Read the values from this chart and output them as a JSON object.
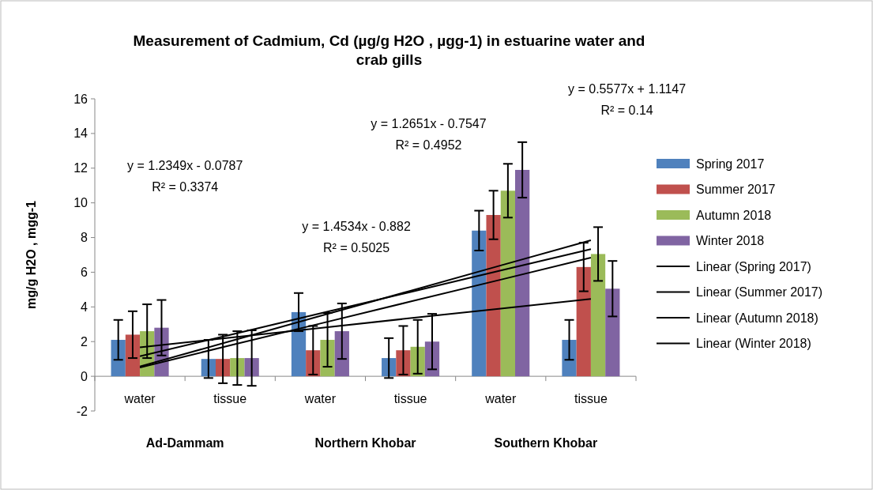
{
  "chart_data": {
    "type": "bar",
    "title": "Measurement of Cadmium, Cd (µg/g H2O , µgg-1) in estuarine water and crab gills",
    "ylabel": "mg/g H2O , mgg-1",
    "categories": [
      "water",
      "tissue",
      "water",
      "tissue",
      "water",
      "tissue"
    ],
    "series": [
      {
        "name": "Spring 2017",
        "color": "#4f81bd",
        "values": [
          2.1,
          1.0,
          3.7,
          1.05,
          8.4,
          2.1
        ],
        "errors": [
          1.15,
          1.1,
          1.1,
          1.15,
          1.15,
          1.15
        ]
      },
      {
        "name": "Summer 2017",
        "color": "#c0504d",
        "values": [
          2.4,
          1.0,
          1.5,
          1.5,
          9.3,
          6.3
        ],
        "errors": [
          1.35,
          1.4,
          1.4,
          1.4,
          1.4,
          1.4
        ]
      },
      {
        "name": "Autumn 2018",
        "color": "#9bbb59",
        "values": [
          2.6,
          1.05,
          2.1,
          1.7,
          10.7,
          7.05
        ],
        "errors": [
          1.55,
          1.55,
          1.55,
          1.55,
          1.55,
          1.55
        ]
      },
      {
        "name": "Winter 2018",
        "color": "#8064a2",
        "values": [
          2.8,
          1.05,
          2.6,
          2.0,
          11.9,
          5.05
        ],
        "errors": [
          1.6,
          1.6,
          1.6,
          1.6,
          1.6,
          1.6
        ]
      },
      {
        "name": "Linear (Spring 2017)",
        "type": "line",
        "color": "#000000",
        "values": [
          1.67,
          2.23,
          2.79,
          3.35,
          3.9,
          4.46
        ]
      },
      {
        "name": "Linear (Summer 2017)",
        "type": "line",
        "color": "#000000",
        "values": [
          0.51,
          1.78,
          3.04,
          4.31,
          5.57,
          6.84
        ]
      },
      {
        "name": "Linear (Autumn 2018)",
        "type": "line",
        "color": "#000000",
        "values": [
          0.57,
          2.02,
          3.48,
          4.93,
          6.39,
          7.84
        ]
      },
      {
        "name": "Linear (Winter 2018)",
        "type": "line",
        "color": "#000000",
        "values": [
          1.16,
          2.39,
          3.63,
          4.86,
          6.1,
          7.33
        ]
      }
    ],
    "ylim": [
      -2,
      16
    ],
    "yticks": [
      -2,
      0,
      2,
      4,
      6,
      8,
      10,
      12,
      14,
      16
    ],
    "grid": false,
    "legend": "right",
    "marker": "none",
    "line_style": "solid",
    "annotations": [
      "y = 1.2349x - 0.0787\nR² = 0.3374",
      "y = 1.4534x - 0.882\nR² = 0.5025",
      "y = 1.2651x - 0.7547\nR² = 0.4952",
      "y = 0.5577x + 1.1147\nR² = 0.14",
      "Ad-Dammam",
      "Northern Khobar",
      "Southern Khobar"
    ]
  }
}
